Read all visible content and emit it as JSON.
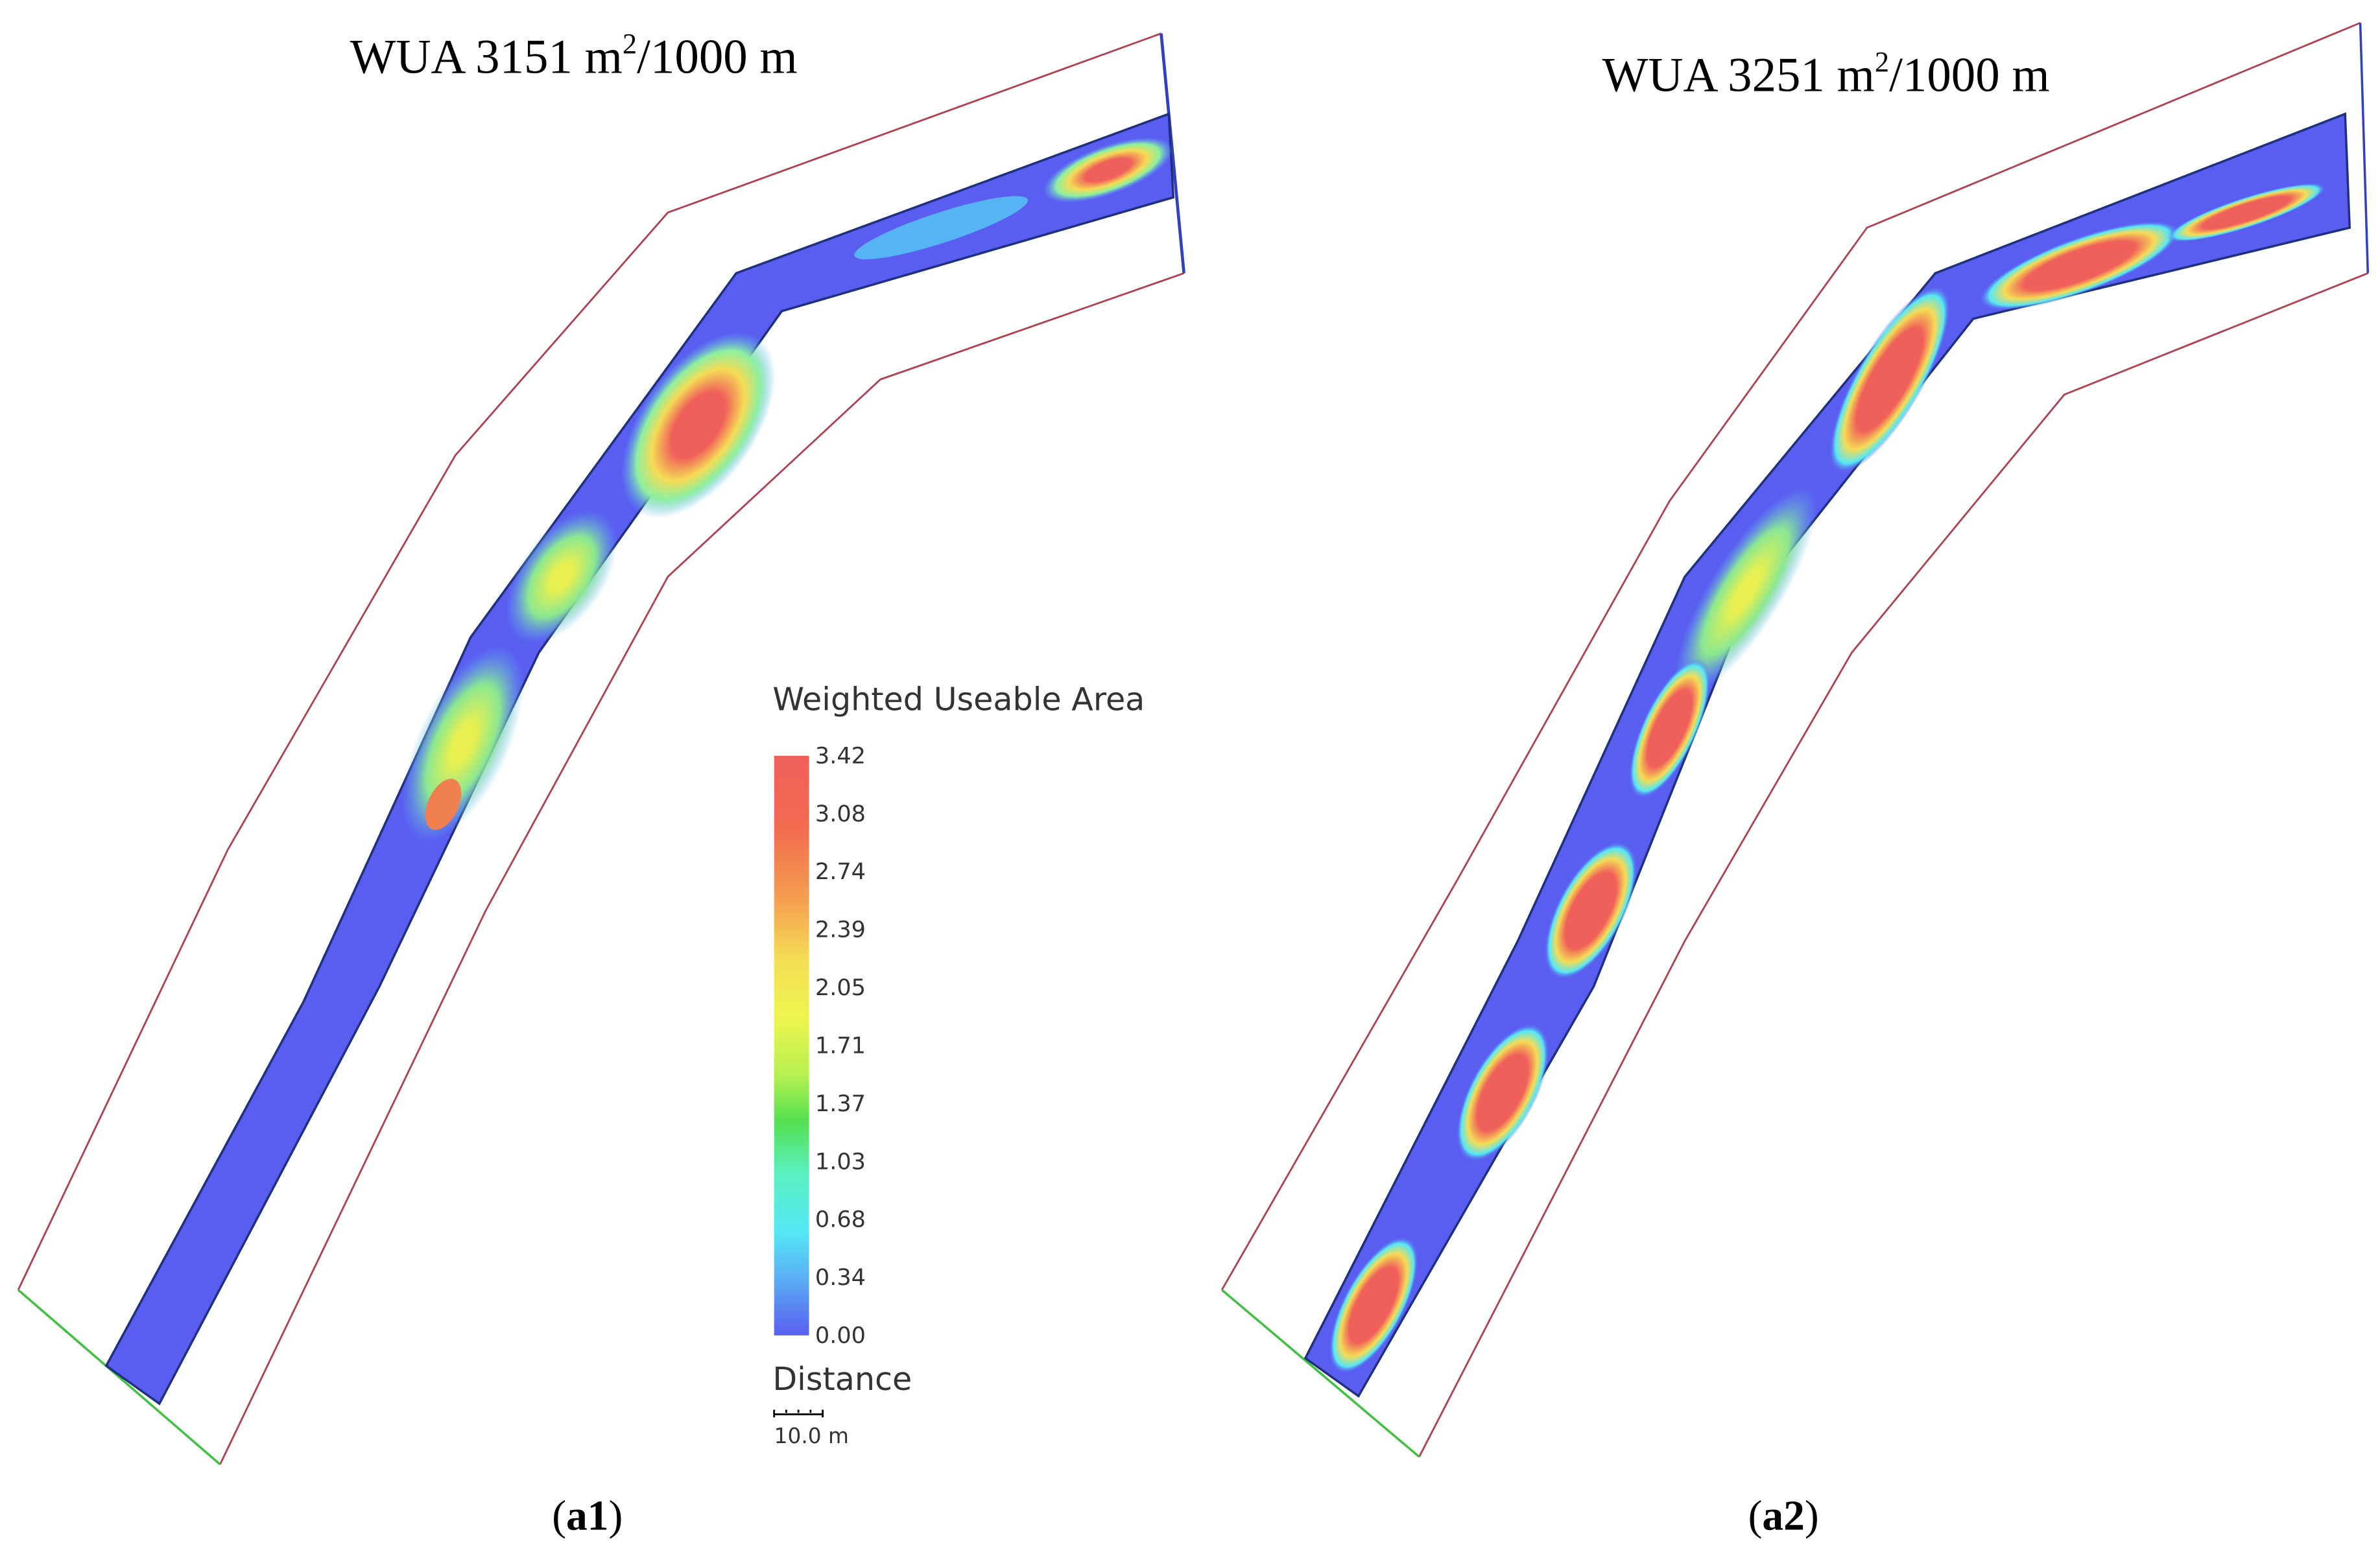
{
  "panels": [
    {
      "title": {
        "main": "WUA 3151 m",
        "sup": "2",
        "rest": "/1000 m"
      },
      "label": {
        "open": "(",
        "id": "a1",
        "close": ")"
      }
    },
    {
      "title": {
        "main": "WUA 3251 m",
        "sup": "2",
        "rest": "/1000 m"
      },
      "label": {
        "open": "(",
        "id": "a2",
        "close": ")"
      }
    }
  ],
  "legend": {
    "title": "Weighted Useable Area",
    "ticks": [
      "3.42",
      "3.08",
      "2.74",
      "2.39",
      "2.05",
      "1.71",
      "1.37",
      "1.03",
      "0.68",
      "0.34",
      "0.00"
    ],
    "distance_title": "Distance",
    "scale_label": "10.0 m"
  }
}
